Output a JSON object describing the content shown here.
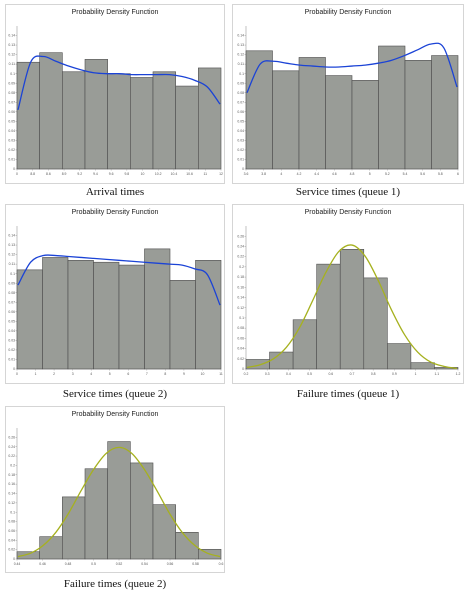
{
  "colors": {
    "bar_fill": "#999c97",
    "bar_stroke": "#4d4d4d",
    "curve_beta": "#1b43d6",
    "curve_normal": "#a6b11f"
  },
  "chart_data": [
    {
      "type": "bar",
      "title": "Probability Density Function",
      "caption": "Arrival times",
      "xlabel": "",
      "ylabel": "",
      "ylim": [
        0,
        0.15
      ],
      "yticks": [
        "0",
        "0.01",
        "0.02",
        "0.03",
        "0.04",
        "0.05",
        "0.06",
        "0.07",
        "0.08",
        "0.09",
        "0.1",
        "0.11",
        "0.12",
        "0.13",
        "0.14"
      ],
      "xticks": [
        "0",
        "8.8",
        "8.6",
        "8.9",
        "9.2",
        "9.4",
        "9.6",
        "9.8",
        "10",
        "10.2",
        "10.4",
        "10.6",
        "11",
        "12"
      ],
      "values": [
        0.112,
        0.122,
        0.102,
        0.115,
        0.1,
        0.096,
        0.102,
        0.087,
        0.106
      ],
      "curve": {
        "name": "",
        "color": "#1b43d6",
        "y": [
          0.062,
          0.112,
          0.118,
          0.113,
          0.108,
          0.104,
          0.101,
          0.1,
          0.1,
          0.099,
          0.099,
          0.099,
          0.099,
          0.097,
          0.093,
          0.086,
          0.068
        ]
      }
    },
    {
      "type": "bar",
      "title": "Probability Density Function",
      "caption": "Service times (queue 1)",
      "xlabel": "",
      "ylabel": "",
      "ylim": [
        0,
        0.15
      ],
      "yticks": [
        "0",
        "0.01",
        "0.02",
        "0.03",
        "0.04",
        "0.05",
        "0.06",
        "0.07",
        "0.08",
        "0.09",
        "0.1",
        "0.11",
        "0.12",
        "0.13",
        "0.14"
      ],
      "xticks": [
        "3.6",
        "3.8",
        "4",
        "4.2",
        "4.4",
        "4.6",
        "4.8",
        "5",
        "5.2",
        "5.4",
        "5.6",
        "5.8",
        "6"
      ],
      "values": [
        0.124,
        0.103,
        0.117,
        0.098,
        0.093,
        0.129,
        0.114,
        0.119
      ],
      "curve": {
        "name": "",
        "color": "#1b43d6",
        "y": [
          0.08,
          0.11,
          0.113,
          0.111,
          0.109,
          0.108,
          0.107,
          0.107,
          0.108,
          0.109,
          0.111,
          0.114,
          0.119,
          0.125,
          0.131,
          0.127,
          0.086
        ]
      }
    },
    {
      "type": "bar",
      "title": "Probability Density Function",
      "caption": "Service times (queue 2)",
      "xlabel": "",
      "ylabel": "",
      "ylim": [
        0,
        0.15
      ],
      "yticks": [
        "0",
        "0.01",
        "0.02",
        "0.03",
        "0.04",
        "0.05",
        "0.06",
        "0.07",
        "0.08",
        "0.09",
        "0.1",
        "0.11",
        "0.12",
        "0.13",
        "0.14"
      ],
      "xticks": [
        "0",
        "1",
        "2",
        "3",
        "4",
        "5",
        "6",
        "7",
        "8",
        "9",
        "10",
        "11"
      ],
      "values": [
        0.104,
        0.117,
        0.114,
        0.112,
        0.109,
        0.126,
        0.093,
        0.114
      ],
      "curve": {
        "name": "",
        "color": "#1b43d6",
        "y": [
          0.088,
          0.112,
          0.119,
          0.119,
          0.118,
          0.117,
          0.116,
          0.115,
          0.114,
          0.113,
          0.112,
          0.111,
          0.11,
          0.109,
          0.105,
          0.099,
          0.067
        ]
      }
    },
    {
      "type": "bar",
      "title": "Probability Density Function",
      "caption": "Failure times (queue 1)",
      "xlabel": "",
      "ylabel": "",
      "ylim": [
        0,
        0.27
      ],
      "yticks": [
        "0",
        "0.02",
        "0.04",
        "0.06",
        "0.08",
        "0.1",
        "0.12",
        "0.14",
        "0.16",
        "0.18",
        "0.2",
        "0.22",
        "0.24",
        "0.26"
      ],
      "xticks": [
        "0.2",
        "0.3",
        "0.4",
        "0.5",
        "0.6",
        "0.7",
        "0.8",
        "0.9",
        "1",
        "1.1",
        "1.2"
      ],
      "values": [
        0.018,
        0.032,
        0.093,
        0.198,
        0.226,
        0.172,
        0.048,
        0.012,
        0.003
      ],
      "curve": {
        "name": "",
        "color": "#a6b11f",
        "y": [
          0.003,
          0.008,
          0.019,
          0.041,
          0.078,
          0.129,
          0.182,
          0.222,
          0.234,
          0.213,
          0.167,
          0.112,
          0.065,
          0.032,
          0.013,
          0.005,
          0.001
        ]
      }
    },
    {
      "type": "bar",
      "title": "Probability Density Function",
      "caption": "Failure times (queue 2)",
      "xlabel": "",
      "ylabel": "",
      "ylim": [
        0,
        0.27
      ],
      "yticks": [
        "0",
        "0.02",
        "0.04",
        "0.06",
        "0.08",
        "0.1",
        "0.12",
        "0.14",
        "0.16",
        "0.18",
        "0.2",
        "0.22",
        "0.24",
        "0.26"
      ],
      "xticks": [
        "0.44",
        "0.46",
        "0.48",
        "0.5",
        "0.52",
        "0.54",
        "0.56",
        "0.58",
        "0.6"
      ],
      "values": [
        0.015,
        0.046,
        0.128,
        0.186,
        0.242,
        0.198,
        0.112,
        0.055,
        0.02
      ],
      "curve": {
        "name": "",
        "color": "#a6b11f",
        "y": [
          0.005,
          0.012,
          0.028,
          0.055,
          0.094,
          0.141,
          0.185,
          0.218,
          0.23,
          0.218,
          0.185,
          0.141,
          0.094,
          0.055,
          0.028,
          0.012,
          0.005
        ]
      }
    }
  ]
}
